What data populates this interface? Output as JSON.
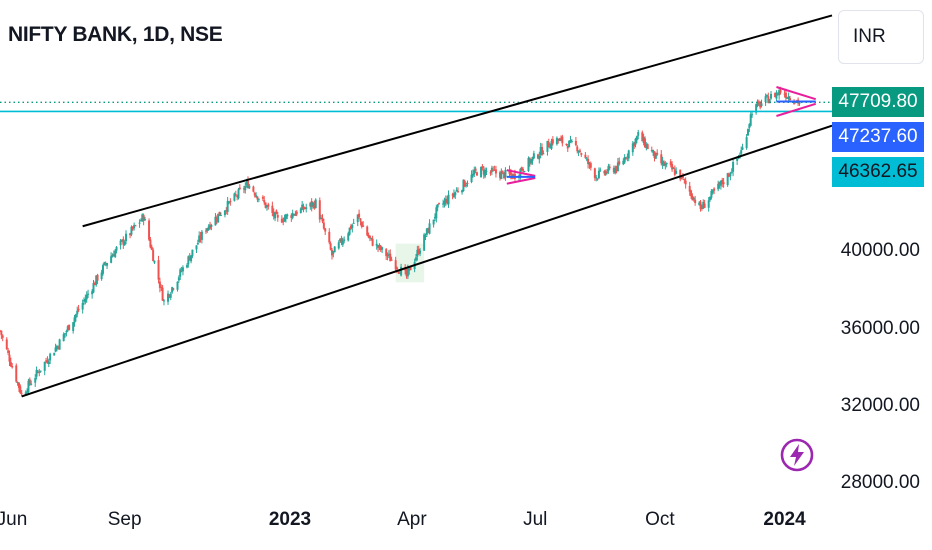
{
  "header": {
    "title": "NIFTY BANK, 1D, NSE",
    "currency_label": "INR"
  },
  "colors": {
    "up": "#26a69a",
    "down": "#ef5350",
    "channel": "#000000",
    "horizontal_line": "#00bcd4",
    "pattern_magenta": "#e91e9c",
    "pattern_blue": "#2962ff",
    "last_price_tag": "#089981",
    "tag_blue": "#2962ff",
    "tag_cyan": "#00bcd4",
    "icon_purple": "#9c27b0"
  },
  "icons": [
    "lightning-icon"
  ],
  "chart_data": {
    "type": "candlestick",
    "title": "NIFTY BANK, 1D, NSE",
    "xlabel": "",
    "ylabel": "",
    "x_ticks": [
      {
        "label": "Jun",
        "date": "2022-06-01",
        "bold": false
      },
      {
        "label": "Sep",
        "date": "2022-09-01",
        "bold": false
      },
      {
        "label": "2023",
        "date": "2023-01-01",
        "bold": true
      },
      {
        "label": "Apr",
        "date": "2023-04-01",
        "bold": false
      },
      {
        "label": "Jul",
        "date": "2023-07-01",
        "bold": false
      },
      {
        "label": "Oct",
        "date": "2023-10-01",
        "bold": false
      },
      {
        "label": "2024",
        "date": "2024-01-01",
        "bold": true
      }
    ],
    "y_ticks": [
      {
        "label": "40000.00",
        "value": 40000
      },
      {
        "label": "36000.00",
        "value": 36000
      },
      {
        "label": "32000.00",
        "value": 32000
      },
      {
        "label": "28000.00",
        "value": 28000
      }
    ],
    "x_range": [
      "2022-06-01",
      "2024-02-05"
    ],
    "y_range": [
      27400,
      53000
    ],
    "price_tags": [
      {
        "label": "47709.80",
        "value": 47709.8,
        "role": "last-price"
      },
      {
        "label": "47237.60",
        "value": 47237.6,
        "role": "horizontal-line"
      },
      {
        "label": "46362.65",
        "value": 46362.65,
        "role": "channel-support"
      }
    ],
    "last_price": 47709.8,
    "horizontal_line": 47237.6,
    "channel": {
      "upper": [
        {
          "date": "2022-08-01",
          "value": 41300
        },
        {
          "date": "2024-02-05",
          "value": 52200
        }
      ],
      "lower": [
        {
          "date": "2022-06-17",
          "value": 32500
        },
        {
          "date": "2024-02-05",
          "value": 46500
        }
      ]
    },
    "key_points": [
      {
        "date": "2022-06-01",
        "value": 35900
      },
      {
        "date": "2022-06-17",
        "value": 32600
      },
      {
        "date": "2022-07-15",
        "value": 35300
      },
      {
        "date": "2022-08-20",
        "value": 39600
      },
      {
        "date": "2022-09-15",
        "value": 41800
      },
      {
        "date": "2022-09-30",
        "value": 37400
      },
      {
        "date": "2022-10-31",
        "value": 41200
      },
      {
        "date": "2022-12-01",
        "value": 43500
      },
      {
        "date": "2022-12-23",
        "value": 41600
      },
      {
        "date": "2023-01-20",
        "value": 42500
      },
      {
        "date": "2023-02-01",
        "value": 39800
      },
      {
        "date": "2023-02-20",
        "value": 41800
      },
      {
        "date": "2023-03-01",
        "value": 40600
      },
      {
        "date": "2023-03-15",
        "value": 39700
      },
      {
        "date": "2023-03-28",
        "value": 38700
      },
      {
        "date": "2023-04-20",
        "value": 42200
      },
      {
        "date": "2023-05-20",
        "value": 44200
      },
      {
        "date": "2023-06-15",
        "value": 43900
      },
      {
        "date": "2023-07-01",
        "value": 44900
      },
      {
        "date": "2023-07-15",
        "value": 45800
      },
      {
        "date": "2023-08-01",
        "value": 45400
      },
      {
        "date": "2023-08-15",
        "value": 43900
      },
      {
        "date": "2023-09-01",
        "value": 44400
      },
      {
        "date": "2023-09-15",
        "value": 46000
      },
      {
        "date": "2023-10-01",
        "value": 44600
      },
      {
        "date": "2023-10-15",
        "value": 44000
      },
      {
        "date": "2023-10-31",
        "value": 42200
      },
      {
        "date": "2023-11-20",
        "value": 43900
      },
      {
        "date": "2023-12-01",
        "value": 45300
      },
      {
        "date": "2023-12-08",
        "value": 47300
      },
      {
        "date": "2023-12-20",
        "value": 47900
      },
      {
        "date": "2023-12-29",
        "value": 48300
      },
      {
        "date": "2024-01-05",
        "value": 48000
      },
      {
        "date": "2024-01-12",
        "value": 47700
      }
    ],
    "annotations": [
      {
        "shape": "triangle",
        "start": "2023-06-10",
        "end": "2023-07-01",
        "top": 44200,
        "bottom": 43500
      },
      {
        "shape": "triangle",
        "start": "2023-12-26",
        "end": "2024-01-24",
        "top": 48500,
        "bottom": 47000
      }
    ]
  }
}
